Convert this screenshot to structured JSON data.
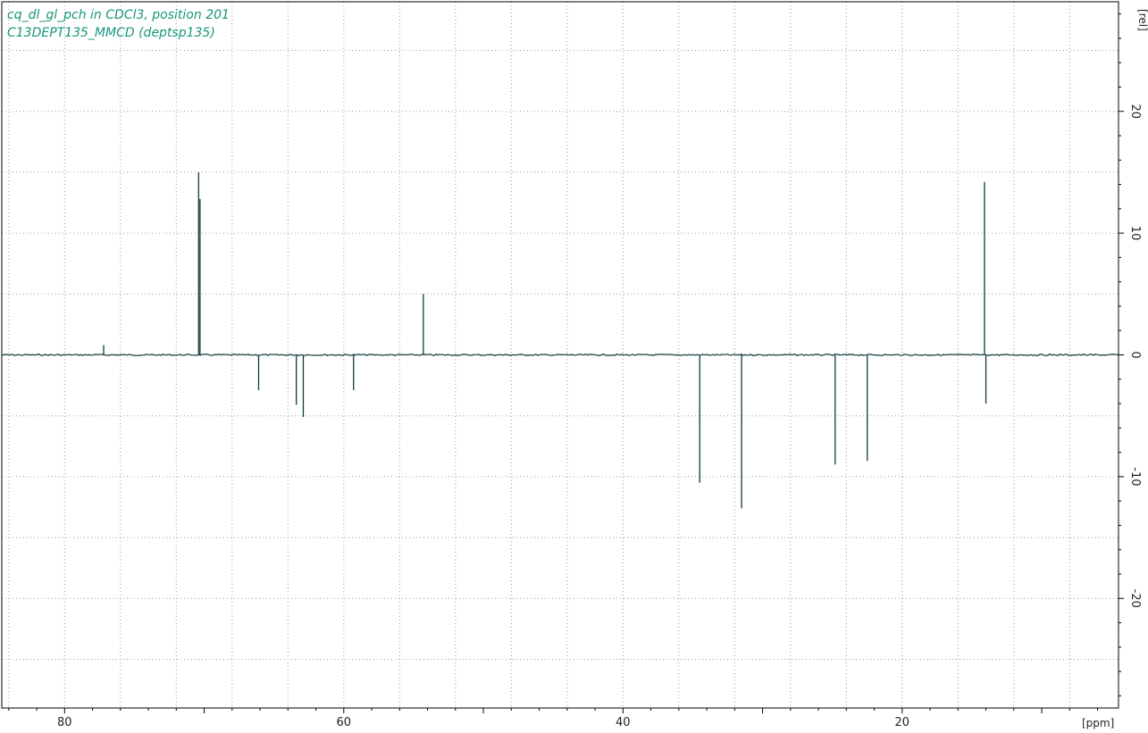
{
  "chart_data": {
    "type": "line",
    "title_lines": [
      "cq_dl_gl_pch in CDCl3, position 201",
      "C13DEPT135_MMCD (deptsp135)"
    ],
    "xlabel": "[ppm]",
    "ylabel": "[rel]",
    "xlim": [
      84.5,
      4.5
    ],
    "ylim": [
      -29,
      29
    ],
    "x_ticks": [
      80,
      60,
      40,
      20
    ],
    "y_ticks": [
      20,
      10,
      0,
      -10,
      -20
    ],
    "grid": true,
    "baseline": 0,
    "peaks": [
      {
        "ppm": 77.2,
        "intensity": 0.8
      },
      {
        "ppm": 70.4,
        "intensity": 15.0
      },
      {
        "ppm": 70.3,
        "intensity": 12.8
      },
      {
        "ppm": 66.1,
        "intensity": -2.9
      },
      {
        "ppm": 63.4,
        "intensity": -4.1
      },
      {
        "ppm": 62.9,
        "intensity": -5.1
      },
      {
        "ppm": 59.3,
        "intensity": -2.9
      },
      {
        "ppm": 54.3,
        "intensity": 5.0
      },
      {
        "ppm": 34.5,
        "intensity": -10.5
      },
      {
        "ppm": 31.5,
        "intensity": -12.6
      },
      {
        "ppm": 24.8,
        "intensity": -9.0
      },
      {
        "ppm": 22.5,
        "intensity": -8.7
      },
      {
        "ppm": 14.1,
        "intensity": 14.2
      },
      {
        "ppm": 14.0,
        "intensity": -4.0
      }
    ]
  },
  "colors": {
    "title": "#17967a",
    "spectrum": "#103a3a",
    "grid": "#9a9a9a"
  }
}
